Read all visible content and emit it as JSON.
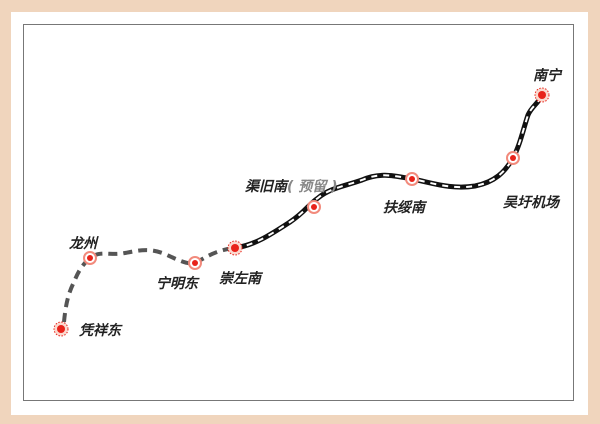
{
  "stations": [
    {
      "name": "凭祥东",
      "type": "major"
    },
    {
      "name": "龙州",
      "type": "normal"
    },
    {
      "name": "宁明东",
      "type": "normal"
    },
    {
      "name": "崇左南",
      "type": "major"
    },
    {
      "name": "渠旧南",
      "note": "( 预留 )",
      "type": "normal"
    },
    {
      "name": "扶绥南",
      "type": "normal"
    },
    {
      "name": "吴圩机场",
      "type": "normal"
    },
    {
      "name": "南宁",
      "type": "major"
    }
  ],
  "colors": {
    "planned_line": "#555555",
    "railway": "#111111",
    "station": "#e8231a",
    "border": "#f0d5bd"
  }
}
